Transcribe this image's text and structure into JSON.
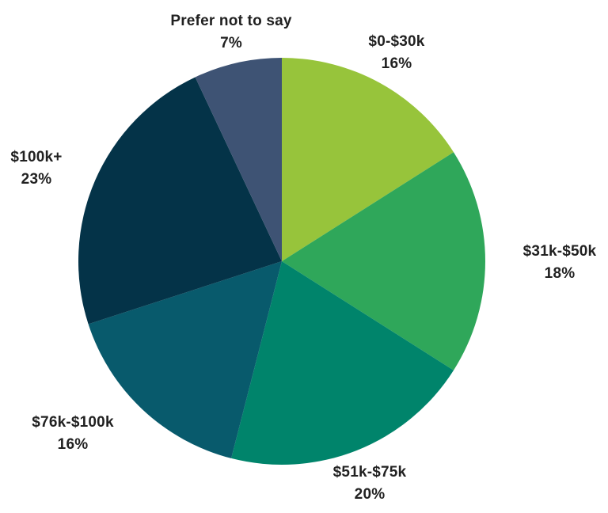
{
  "chart_data": {
    "type": "pie",
    "categories": [
      "$0-$30k",
      "$31k-$50k",
      "$51k-$75k",
      "$76k-$100k",
      "$100k+",
      "Prefer not to say"
    ],
    "values": [
      16,
      18,
      20,
      16,
      23,
      7
    ],
    "percent_labels": [
      "16%",
      "18%",
      "20%",
      "16%",
      "23%",
      "7%"
    ],
    "colors": [
      "#97c43b",
      "#2fa75a",
      "#00846b",
      "#085a6c",
      "#043348",
      "#3e5374"
    ],
    "start_angle_deg": 0,
    "direction": "clockwise",
    "legend": "none",
    "label_style": "outside",
    "text_color": "#212121",
    "background_color": "#ffffff"
  }
}
